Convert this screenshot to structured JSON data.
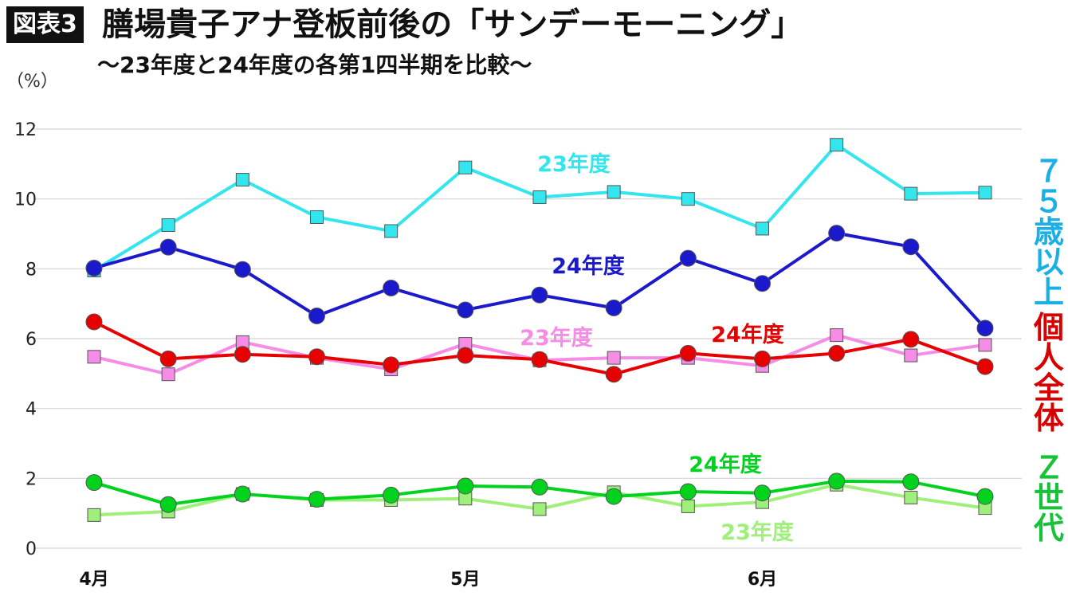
{
  "header": {
    "badge": "図表3",
    "title": "膳場貴子アナ登板前後の「サンデーモーニング」",
    "subtitle": "〜23年度と24年度の各第1四半期を比較〜"
  },
  "chart_data": {
    "type": "line",
    "unit_label": "（%）",
    "x": [
      1,
      2,
      3,
      4,
      5,
      6,
      7,
      8,
      9,
      10,
      11,
      12,
      13
    ],
    "x_tick_labels": [
      "4月",
      "5月",
      "6月"
    ],
    "x_tick_positions": [
      1,
      6,
      10
    ],
    "ylim": [
      0,
      12
    ],
    "yticks": [
      "0",
      "2",
      "4",
      "6",
      "8",
      "10",
      "12"
    ],
    "grid": true,
    "groups": [
      "７５歳以上",
      "個人全体",
      "Ｚ世代"
    ],
    "series": [
      {
        "group": "７５歳以上",
        "name": "23年度",
        "color": "#33e6ee",
        "marker": "square",
        "values": [
          7.95,
          9.25,
          10.55,
          9.48,
          9.08,
          10.9,
          10.05,
          10.2,
          10.0,
          9.15,
          11.55,
          10.15,
          10.18
        ]
      },
      {
        "group": "７５歳以上",
        "name": "24年度",
        "color": "#1a1acc",
        "marker": "circle",
        "values": [
          8.02,
          8.62,
          7.98,
          6.65,
          7.45,
          6.82,
          7.25,
          6.88,
          8.3,
          7.58,
          9.02,
          8.63,
          6.3
        ]
      },
      {
        "group": "個人全体",
        "name": "23年度",
        "color": "#f58ce6",
        "marker": "square",
        "values": [
          5.48,
          4.98,
          5.9,
          5.45,
          5.12,
          5.85,
          5.38,
          5.45,
          5.45,
          5.22,
          6.1,
          5.52,
          5.82
        ]
      },
      {
        "group": "個人全体",
        "name": "24年度",
        "color": "#e60000",
        "marker": "circle",
        "values": [
          6.48,
          5.42,
          5.55,
          5.48,
          5.25,
          5.52,
          5.4,
          4.98,
          5.58,
          5.42,
          5.58,
          5.98,
          5.2
        ]
      },
      {
        "group": "Ｚ世代",
        "name": "23年度",
        "color": "#9ef07a",
        "marker": "square",
        "values": [
          0.95,
          1.05,
          1.55,
          1.38,
          1.38,
          1.42,
          1.12,
          1.6,
          1.2,
          1.32,
          1.82,
          1.45,
          1.15
        ]
      },
      {
        "group": "Ｚ世代",
        "name": "24年度",
        "color": "#00d21e",
        "marker": "circle",
        "values": [
          1.88,
          1.25,
          1.55,
          1.4,
          1.52,
          1.78,
          1.75,
          1.48,
          1.62,
          1.58,
          1.92,
          1.9,
          1.48
        ]
      }
    ],
    "annotations": [
      {
        "text": "23年度",
        "series": 0
      },
      {
        "text": "24年度",
        "series": 1
      },
      {
        "text": "23年度",
        "series": 2
      },
      {
        "text": "24年度",
        "series": 3
      },
      {
        "text": "24年度",
        "series": 5
      },
      {
        "text": "23年度",
        "series": 4
      }
    ]
  }
}
